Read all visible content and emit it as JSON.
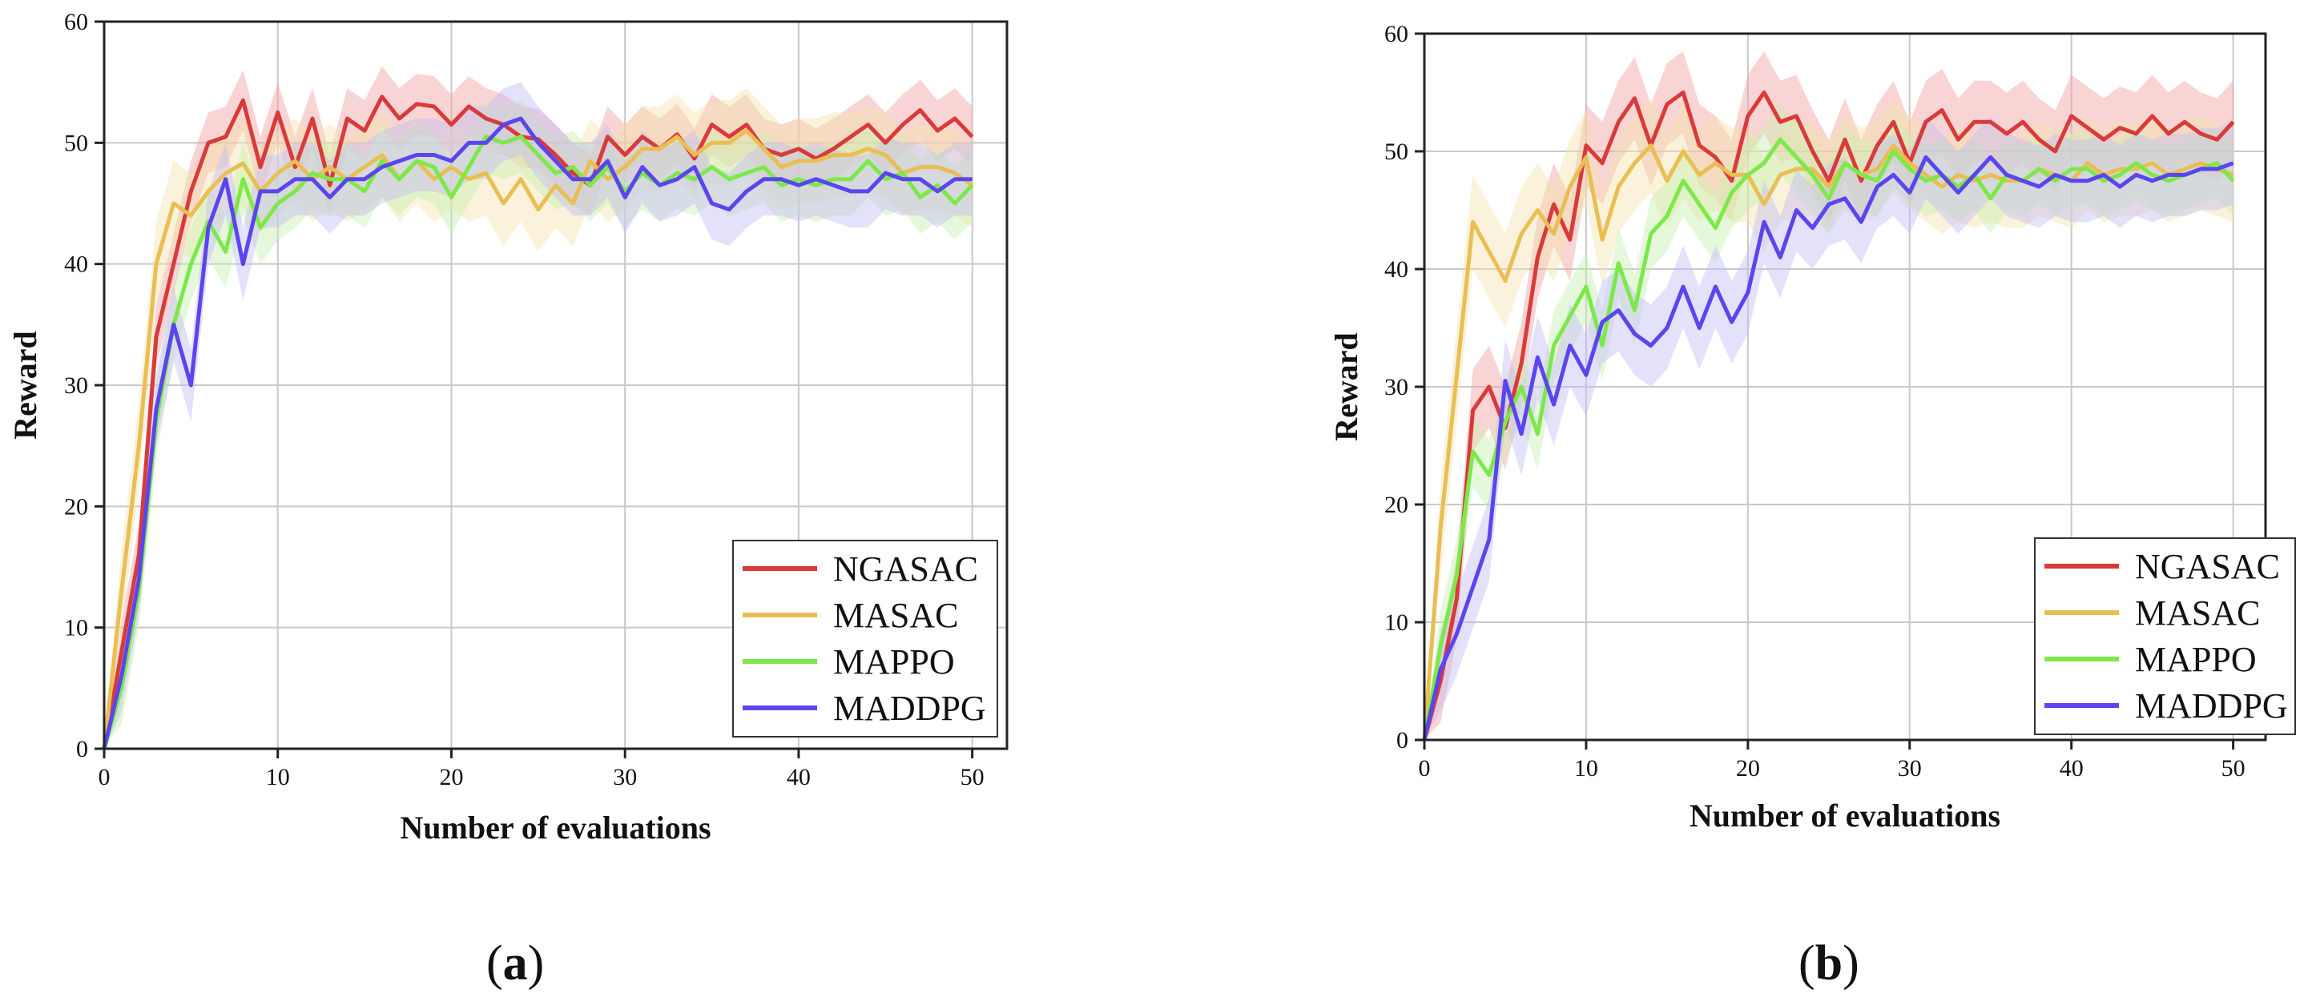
{
  "chart_data": [
    {
      "type": "line",
      "panel_label": "a",
      "xlabel": "Number of evaluations",
      "ylabel": "Reward",
      "xlim": [
        0,
        52
      ],
      "ylim": [
        0,
        60
      ],
      "xticks": [
        0,
        10,
        20,
        30,
        40,
        50
      ],
      "yticks": [
        0,
        10,
        20,
        30,
        40,
        50,
        60
      ],
      "grid": true,
      "legend": "bottom-right",
      "series": [
        {
          "name": "NGASAC",
          "color": "#d93a3a",
          "band_color": "#f2a0a0",
          "band_width": 2.5,
          "x": [
            0,
            1,
            2,
            3,
            4,
            5,
            6,
            7,
            8,
            9,
            10,
            11,
            12,
            13,
            14,
            15,
            16,
            17,
            18,
            19,
            20,
            21,
            22,
            23,
            24,
            25,
            26,
            27,
            28,
            29,
            30,
            31,
            32,
            33,
            34,
            35,
            36,
            37,
            38,
            39,
            40,
            41,
            42,
            43,
            44,
            45,
            46,
            47,
            48,
            49,
            50
          ],
          "values": [
            0,
            8,
            16,
            34,
            40,
            46,
            50,
            50.5,
            53.5,
            48,
            52.5,
            48,
            52,
            46.5,
            52,
            51,
            53.8,
            52,
            53.2,
            53,
            51.5,
            53,
            52,
            51.5,
            50.5,
            50.3,
            49,
            47.5,
            46.5,
            50.5,
            49,
            50.5,
            49.5,
            50.7,
            48.7,
            51.5,
            50.5,
            51.5,
            49.5,
            49,
            49.5,
            48.7,
            49.5,
            50.5,
            51.5,
            50,
            51.5,
            52.7,
            51,
            52,
            50.5
          ]
        },
        {
          "name": "MASAC",
          "color": "#e9be52",
          "band_color": "#f3e2ad",
          "band_width": 3.5,
          "x": [
            0,
            1,
            2,
            3,
            4,
            5,
            6,
            7,
            8,
            9,
            10,
            11,
            12,
            13,
            14,
            15,
            16,
            17,
            18,
            19,
            20,
            21,
            22,
            23,
            24,
            25,
            26,
            27,
            28,
            29,
            30,
            31,
            32,
            33,
            34,
            35,
            36,
            37,
            38,
            39,
            40,
            41,
            42,
            43,
            44,
            45,
            46,
            47,
            48,
            49,
            50
          ],
          "values": [
            0,
            13,
            25,
            40,
            45,
            44,
            46,
            47.5,
            48.3,
            46,
            47.5,
            48.5,
            47,
            48,
            47,
            48,
            49,
            47,
            48.5,
            47,
            48,
            47,
            47.5,
            45,
            47,
            44.5,
            46.5,
            45,
            48.5,
            47,
            48,
            49.5,
            49.5,
            50.5,
            49,
            50,
            50,
            51,
            49.5,
            48,
            48.5,
            48.5,
            49,
            49,
            49.5,
            49,
            47.5,
            48,
            48,
            47.5,
            46.5
          ]
        },
        {
          "name": "MAPPO",
          "color": "#7de84a",
          "band_color": "#c8f0b0",
          "band_width": 3,
          "x": [
            0,
            1,
            2,
            3,
            4,
            5,
            6,
            7,
            8,
            9,
            10,
            11,
            12,
            13,
            14,
            15,
            16,
            17,
            18,
            19,
            20,
            21,
            22,
            23,
            24,
            25,
            26,
            27,
            28,
            29,
            30,
            31,
            32,
            33,
            34,
            35,
            36,
            37,
            38,
            39,
            40,
            41,
            42,
            43,
            44,
            45,
            46,
            47,
            48,
            49,
            50
          ],
          "values": [
            0,
            5,
            13,
            27,
            35,
            40,
            43.5,
            41,
            47,
            43,
            45,
            46,
            47.5,
            47,
            47,
            46,
            48.5,
            47,
            48.5,
            48,
            45.5,
            48,
            50.5,
            50,
            50.5,
            49,
            47.5,
            48,
            46.5,
            48,
            46,
            47.5,
            46.5,
            47.5,
            47,
            48,
            47,
            47.5,
            48,
            46.5,
            47,
            46.5,
            47,
            47,
            48.5,
            47,
            47.5,
            45.5,
            46.5,
            45,
            46.5
          ]
        },
        {
          "name": "MADDPG",
          "color": "#5a45ee",
          "band_color": "#c3bdf5",
          "band_width": 3,
          "x": [
            0,
            1,
            2,
            3,
            4,
            5,
            6,
            7,
            8,
            9,
            10,
            11,
            12,
            13,
            14,
            15,
            16,
            17,
            18,
            19,
            20,
            21,
            22,
            23,
            24,
            25,
            26,
            27,
            28,
            29,
            30,
            31,
            32,
            33,
            34,
            35,
            36,
            37,
            38,
            39,
            40,
            41,
            42,
            43,
            44,
            45,
            46,
            47,
            48,
            49,
            50
          ],
          "values": [
            0,
            6,
            14,
            28,
            35,
            30,
            43,
            47,
            40,
            46,
            46,
            47,
            47,
            45.5,
            47,
            47,
            48,
            48.5,
            49,
            49,
            48.5,
            50,
            50,
            51.5,
            52,
            50,
            48.5,
            47,
            47,
            48.5,
            45.5,
            48,
            46.5,
            47,
            48,
            45,
            44.5,
            46,
            47,
            47,
            46.5,
            47,
            46.5,
            46,
            46,
            47.5,
            47,
            47,
            46,
            47,
            47
          ]
        }
      ],
      "legend_entries": [
        "NGASAC",
        "MASAC",
        "MAPPO",
        "MADDPG"
      ]
    },
    {
      "type": "line",
      "panel_label": "b",
      "xlabel": "Number of evaluations",
      "ylabel": "Reward",
      "xlim": [
        0,
        52
      ],
      "ylim": [
        0,
        60
      ],
      "xticks": [
        0,
        10,
        20,
        30,
        40,
        50
      ],
      "yticks": [
        0,
        10,
        20,
        30,
        40,
        50,
        60
      ],
      "grid": true,
      "legend": "bottom-right",
      "series": [
        {
          "name": "NGASAC",
          "color": "#d93a3a",
          "band_color": "#f2a0a0",
          "band_width": 3.5,
          "x": [
            0,
            1,
            2,
            3,
            4,
            5,
            6,
            7,
            8,
            9,
            10,
            11,
            12,
            13,
            14,
            15,
            16,
            17,
            18,
            19,
            20,
            21,
            22,
            23,
            24,
            25,
            26,
            27,
            28,
            29,
            30,
            31,
            32,
            33,
            34,
            35,
            36,
            37,
            38,
            39,
            40,
            41,
            42,
            43,
            44,
            45,
            46,
            47,
            48,
            49,
            50
          ],
          "values": [
            0,
            5,
            12,
            28,
            30,
            26.5,
            32,
            41,
            45.5,
            42.5,
            50.5,
            49,
            52.5,
            54.5,
            50.5,
            54,
            55,
            50.5,
            49.5,
            47.5,
            53,
            55,
            52.5,
            53,
            50,
            47.5,
            51,
            47.5,
            50.5,
            52.5,
            49,
            52.5,
            53.5,
            51,
            52.5,
            52.5,
            51.5,
            52.5,
            51,
            50,
            53,
            52,
            51,
            52,
            51.5,
            53,
            51.5,
            52.5,
            51.5,
            51,
            52.5
          ]
        },
        {
          "name": "MASAC",
          "color": "#e9be52",
          "band_color": "#f3e2ad",
          "band_width": 4,
          "x": [
            0,
            1,
            2,
            3,
            4,
            5,
            6,
            7,
            8,
            9,
            10,
            11,
            12,
            13,
            14,
            15,
            16,
            17,
            18,
            19,
            20,
            21,
            22,
            23,
            24,
            25,
            26,
            27,
            28,
            29,
            30,
            31,
            32,
            33,
            34,
            35,
            36,
            37,
            38,
            39,
            40,
            41,
            42,
            43,
            44,
            45,
            46,
            47,
            48,
            49,
            50
          ],
          "values": [
            0,
            18,
            31,
            44,
            41.5,
            39,
            43,
            45,
            43,
            47,
            49.5,
            42.5,
            47,
            49,
            50.5,
            47.5,
            50,
            48,
            49,
            48,
            48,
            45.5,
            48,
            48.5,
            48.5,
            47,
            49,
            48,
            48.5,
            50.5,
            49,
            48,
            47,
            48,
            47.5,
            48,
            47.5,
            47.5,
            48.5,
            48,
            47.5,
            49,
            48,
            48.5,
            48.5,
            49,
            48,
            48.5,
            49,
            48.5,
            48
          ]
        },
        {
          "name": "MAPPO",
          "color": "#7de84a",
          "band_color": "#c8f0b0",
          "band_width": 3,
          "x": [
            0,
            1,
            2,
            3,
            4,
            5,
            6,
            7,
            8,
            9,
            10,
            11,
            12,
            13,
            14,
            15,
            16,
            17,
            18,
            19,
            20,
            21,
            22,
            23,
            24,
            25,
            26,
            27,
            28,
            29,
            30,
            31,
            32,
            33,
            34,
            35,
            36,
            37,
            38,
            39,
            40,
            41,
            42,
            43,
            44,
            45,
            46,
            47,
            48,
            49,
            50
          ],
          "values": [
            0,
            8,
            14,
            24.5,
            22.5,
            27,
            30,
            26,
            33.5,
            36,
            38.5,
            33.5,
            40.5,
            36.5,
            43,
            44.5,
            47.5,
            45.5,
            43.5,
            46.5,
            48,
            49,
            51,
            49.5,
            48,
            46,
            49,
            48,
            47.5,
            50,
            48.5,
            47.5,
            48,
            47,
            48,
            46,
            48,
            47.5,
            48.5,
            47.5,
            48.5,
            48.5,
            47.5,
            48,
            49,
            48,
            47.5,
            48,
            48.5,
            49,
            47.5
          ]
        },
        {
          "name": "MADDPG",
          "color": "#5a45ee",
          "band_color": "#c3bdf5",
          "band_width": 3.5,
          "x": [
            0,
            1,
            2,
            3,
            4,
            5,
            6,
            7,
            8,
            9,
            10,
            11,
            12,
            13,
            14,
            15,
            16,
            17,
            18,
            19,
            20,
            21,
            22,
            23,
            24,
            25,
            26,
            27,
            28,
            29,
            30,
            31,
            32,
            33,
            34,
            35,
            36,
            37,
            38,
            39,
            40,
            41,
            42,
            43,
            44,
            45,
            46,
            47,
            48,
            49,
            50
          ],
          "values": [
            0,
            6,
            9,
            13,
            17,
            30.5,
            26,
            32.5,
            28.5,
            33.5,
            31,
            35.5,
            36.5,
            34.5,
            33.5,
            35,
            38.5,
            35,
            38.5,
            35.5,
            38,
            44,
            41,
            45,
            43.5,
            45.5,
            46,
            44,
            47,
            48,
            46.5,
            49.5,
            48,
            46.5,
            48,
            49.5,
            48,
            47.5,
            47,
            48,
            47.5,
            47.5,
            48,
            47,
            48,
            47.5,
            48,
            48,
            48.5,
            48.5,
            49
          ]
        }
      ],
      "legend_entries": [
        "NGASAC",
        "MASAC",
        "MAPPO",
        "MADDPG"
      ]
    }
  ]
}
